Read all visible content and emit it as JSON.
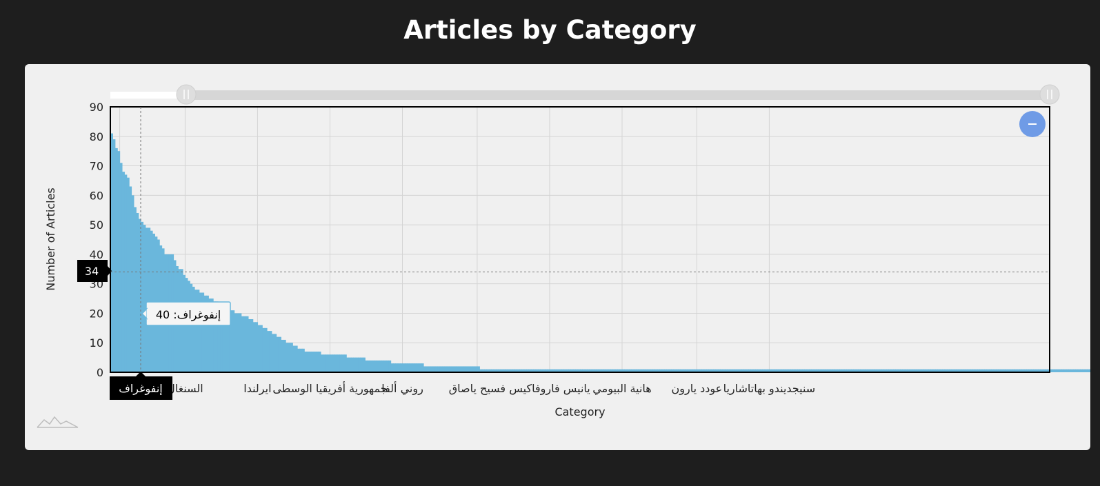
{
  "page": {
    "title": "Articles by Category"
  },
  "controls": {
    "zoom_out_icon": "minus-icon",
    "scroller_handle_icon": "grip-lines-icon",
    "logo_icon": "mountain-logo-icon"
  },
  "colors": {
    "bar": "#6ab7dc",
    "background": "#1e1e1e",
    "card": "#f0f0f0",
    "zoom_button": "#6f9be6",
    "crosshair_box": "#000000",
    "tooltip_border": "#6ab7dc"
  },
  "cursor": {
    "y_value": 34,
    "category": "إنفوغراف"
  },
  "tooltip": {
    "category": "إنفوغراف",
    "value": 40,
    "text": "إنفوغراف: 40"
  },
  "chart_data": {
    "type": "bar",
    "title": "Articles by Category",
    "xlabel": "Category",
    "ylabel": "Number of Articles",
    "ylim": [
      0,
      90
    ],
    "yticks": [
      0,
      10,
      20,
      30,
      40,
      50,
      60,
      70,
      80,
      90
    ],
    "grid": true,
    "category_count": 402,
    "visible_tick_labels": [
      {
        "index": 32,
        "label": "السنغال"
      },
      {
        "index": 63,
        "label": "ايرلندا"
      },
      {
        "index": 94,
        "label": "جمهورية أفريقيا الوسطى"
      },
      {
        "index": 125,
        "label": "روني ألفا"
      },
      {
        "index": 157,
        "label": "فسيح ياصاق"
      },
      {
        "index": 188,
        "label": "يانيس فاروفاكيس"
      },
      {
        "index": 219,
        "label": "هانية البيومي"
      },
      {
        "index": 251,
        "label": "عودد يارون"
      },
      {
        "index": 282,
        "label": "سنيجديندو بهاتاشاريا"
      }
    ],
    "values": [
      81,
      79,
      76,
      75,
      71,
      68,
      67,
      66,
      63,
      60,
      56,
      54,
      52,
      51,
      50,
      49,
      49,
      48,
      47,
      46,
      45,
      43,
      42,
      40,
      40,
      40,
      40,
      38,
      36,
      35,
      35,
      33,
      32,
      31,
      30,
      29,
      28,
      28,
      27,
      27,
      26,
      26,
      25,
      25,
      24,
      24,
      23,
      23,
      22,
      22,
      22,
      21,
      21,
      20,
      20,
      20,
      19,
      19,
      19,
      18,
      18,
      17,
      17,
      16,
      16,
      15,
      15,
      14,
      14,
      13,
      13,
      12,
      12,
      11,
      11,
      10,
      10,
      10,
      9,
      9,
      8,
      8,
      8,
      7,
      7,
      7,
      7,
      7,
      7,
      7,
      6,
      6,
      6,
      6,
      6,
      6,
      6,
      6,
      6,
      6,
      6,
      5,
      5,
      5,
      5,
      5,
      5,
      5,
      5,
      4,
      4,
      4,
      4,
      4,
      4,
      4,
      4,
      4,
      4,
      4,
      3,
      3,
      3,
      3,
      3,
      3,
      3,
      3,
      3,
      3,
      3,
      3,
      3,
      3,
      2,
      2,
      2,
      2,
      2,
      2,
      2,
      2,
      2,
      2,
      2,
      2,
      2,
      2,
      2,
      2,
      2,
      2,
      2,
      2,
      2,
      2,
      2,
      2,
      1,
      1,
      1,
      1,
      1,
      1,
      1,
      1,
      1,
      1,
      1,
      1,
      1,
      1,
      1,
      1,
      1,
      1,
      1,
      1,
      1,
      1,
      1,
      1,
      1,
      1,
      1,
      1,
      1,
      1,
      1,
      1,
      1,
      1,
      1,
      1,
      1,
      1,
      1,
      1,
      1,
      1,
      1,
      1,
      1,
      1,
      1,
      1,
      1,
      1,
      1,
      1,
      1,
      1,
      1,
      1,
      1,
      1,
      1,
      1,
      1,
      1,
      1,
      1,
      1,
      1,
      1,
      1,
      1,
      1,
      1,
      1,
      1,
      1,
      1,
      1,
      1,
      1,
      1,
      1,
      1,
      1,
      1,
      1,
      1,
      1,
      1,
      1,
      1,
      1,
      1,
      1,
      1,
      1,
      1,
      1,
      1,
      1,
      1,
      1,
      1,
      1,
      1,
      1,
      1,
      1,
      1,
      1,
      1,
      1,
      1,
      1,
      1,
      1,
      1,
      1,
      1,
      1,
      1,
      1,
      1,
      1,
      1,
      1,
      1,
      1,
      1,
      1,
      1,
      1,
      1,
      1,
      1,
      1,
      1,
      1,
      1,
      1,
      1,
      1,
      1,
      1,
      1,
      1,
      1,
      1,
      1,
      1,
      1,
      1,
      1,
      1,
      1,
      1,
      1,
      1,
      1,
      1,
      1,
      1,
      1,
      1,
      1,
      1,
      1,
      1,
      1,
      1,
      1,
      1,
      1,
      1,
      1,
      1,
      1,
      1,
      1,
      1,
      1,
      1,
      1,
      1,
      1,
      1,
      1,
      1,
      1,
      1,
      1,
      1,
      1,
      1,
      1,
      1,
      1,
      1,
      1,
      1,
      1,
      1,
      1,
      1,
      1,
      1,
      1,
      1,
      1,
      1,
      1,
      1,
      1,
      1,
      1,
      1,
      1,
      1,
      1,
      1,
      1,
      1,
      1,
      1,
      1,
      1,
      1,
      1,
      1,
      1,
      1,
      1,
      1,
      1,
      1,
      1,
      1,
      1,
      1,
      1,
      1,
      1,
      1,
      1,
      1,
      1,
      1,
      1,
      1,
      1,
      1,
      1,
      1,
      1,
      1,
      1,
      1,
      1,
      1,
      1,
      1,
      1,
      1,
      1,
      1,
      1,
      1,
      1,
      1,
      1,
      1
    ]
  }
}
